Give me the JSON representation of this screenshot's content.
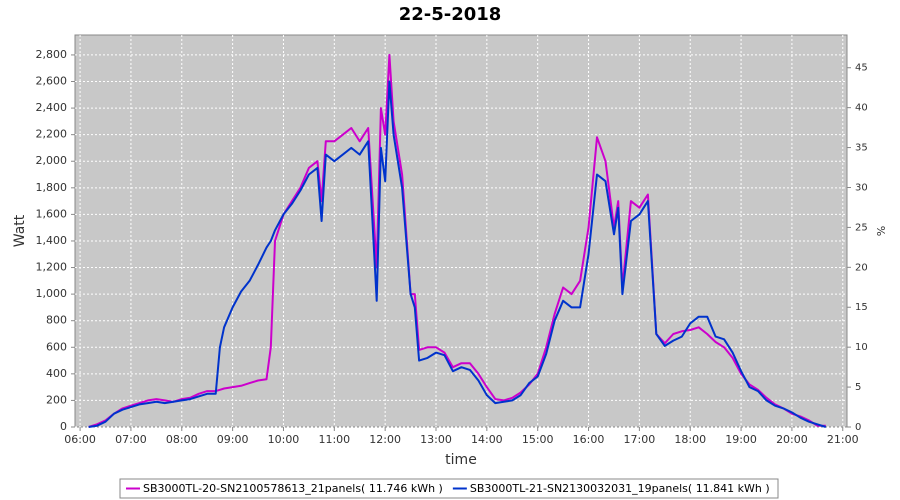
{
  "chart_data": {
    "type": "line",
    "title": "22-5-2018",
    "xlabel": "time",
    "ylabel": "Watt",
    "y2label": "%",
    "x": [
      "06:10",
      "06:20",
      "06:30",
      "06:40",
      "06:50",
      "07:00",
      "07:10",
      "07:20",
      "07:30",
      "07:40",
      "07:50",
      "08:00",
      "08:10",
      "08:20",
      "08:30",
      "08:40",
      "08:45",
      "08:50",
      "09:00",
      "09:10",
      "09:20",
      "09:30",
      "09:40",
      "09:45",
      "09:50",
      "10:00",
      "10:10",
      "10:20",
      "10:30",
      "10:40",
      "10:45",
      "10:50",
      "11:00",
      "11:10",
      "11:20",
      "11:30",
      "11:40",
      "11:50",
      "11:55",
      "12:00",
      "12:05",
      "12:10",
      "12:20",
      "12:30",
      "12:35",
      "12:40",
      "12:50",
      "13:00",
      "13:10",
      "13:20",
      "13:30",
      "13:40",
      "13:50",
      "14:00",
      "14:10",
      "14:20",
      "14:30",
      "14:40",
      "14:50",
      "15:00",
      "15:10",
      "15:20",
      "15:30",
      "15:40",
      "15:50",
      "16:00",
      "16:10",
      "16:20",
      "16:30",
      "16:35",
      "16:40",
      "16:50",
      "17:00",
      "17:10",
      "17:20",
      "17:30",
      "17:40",
      "17:50",
      "18:00",
      "18:10",
      "18:20",
      "18:30",
      "18:40",
      "18:50",
      "19:00",
      "19:10",
      "19:20",
      "19:30",
      "19:40",
      "19:50",
      "20:00",
      "20:10",
      "20:20",
      "20:30",
      "20:40"
    ],
    "series": [
      {
        "name": "SB3000TL-20-SN2100578613_21panels( 11.746 kWh )",
        "color": "#cc00cc",
        "values": [
          0,
          20,
          50,
          100,
          140,
          160,
          180,
          200,
          210,
          200,
          190,
          210,
          220,
          250,
          270,
          270,
          280,
          290,
          300,
          310,
          330,
          350,
          360,
          600,
          1400,
          1600,
          1700,
          1800,
          1950,
          2000,
          1700,
          2150,
          2150,
          2200,
          2250,
          2150,
          2250,
          1200,
          2400,
          2200,
          2800,
          2300,
          1900,
          1000,
          1000,
          580,
          600,
          600,
          560,
          450,
          480,
          480,
          400,
          300,
          210,
          200,
          220,
          260,
          320,
          400,
          600,
          850,
          1050,
          1000,
          1100,
          1500,
          2180,
          2000,
          1500,
          1700,
          1050,
          1700,
          1650,
          1750,
          700,
          630,
          700,
          720,
          730,
          750,
          700,
          640,
          600,
          520,
          400,
          320,
          280,
          220,
          170,
          140,
          100,
          80,
          50,
          10,
          10
        ]
      },
      {
        "name": "SB3000TL-21-SN2130032031_19panels( 11.841 kWh )",
        "color": "#0033cc",
        "values": [
          0,
          10,
          40,
          100,
          130,
          150,
          170,
          180,
          190,
          180,
          190,
          200,
          210,
          230,
          250,
          250,
          600,
          750,
          900,
          1020,
          1100,
          1220,
          1350,
          1400,
          1480,
          1600,
          1680,
          1780,
          1900,
          1950,
          1550,
          2050,
          2000,
          2050,
          2100,
          2050,
          2150,
          950,
          2100,
          1850,
          2600,
          2200,
          1800,
          1000,
          900,
          500,
          520,
          560,
          540,
          420,
          450,
          430,
          350,
          240,
          180,
          190,
          200,
          240,
          330,
          380,
          550,
          800,
          950,
          900,
          900,
          1300,
          1900,
          1850,
          1450,
          1650,
          1000,
          1550,
          1600,
          1700,
          700,
          610,
          650,
          680,
          780,
          830,
          830,
          680,
          660,
          560,
          420,
          300,
          270,
          200,
          160,
          140,
          110,
          70,
          40,
          20,
          0
        ]
      }
    ],
    "xlim": [
      "05:54",
      "21:05"
    ],
    "xticks": [
      "06:00",
      "07:00",
      "08:00",
      "09:00",
      "10:00",
      "11:00",
      "12:00",
      "13:00",
      "14:00",
      "15:00",
      "16:00",
      "17:00",
      "18:00",
      "19:00",
      "20:00",
      "21:00"
    ],
    "ylim": [
      0,
      2950
    ],
    "yticks": [
      0,
      200,
      400,
      600,
      800,
      {
        "value": 1000,
        "label": "1,000"
      },
      {
        "value": 1200,
        "label": "1,200"
      },
      {
        "value": 1400,
        "label": "1,400"
      },
      {
        "value": 1600,
        "label": "1,600"
      },
      {
        "value": 1800,
        "label": "1,800"
      },
      {
        "value": 2000,
        "label": "2,000"
      },
      {
        "value": 2200,
        "label": "2,200"
      },
      {
        "value": 2400,
        "label": "2,400"
      },
      {
        "value": 2600,
        "label": "2,600"
      },
      {
        "value": 2800,
        "label": "2,800"
      }
    ],
    "y2lim": [
      0,
      49.1
    ],
    "y2ticks": [
      0,
      5,
      10,
      15,
      20,
      25,
      30,
      35,
      40,
      45
    ],
    "grid": true
  }
}
